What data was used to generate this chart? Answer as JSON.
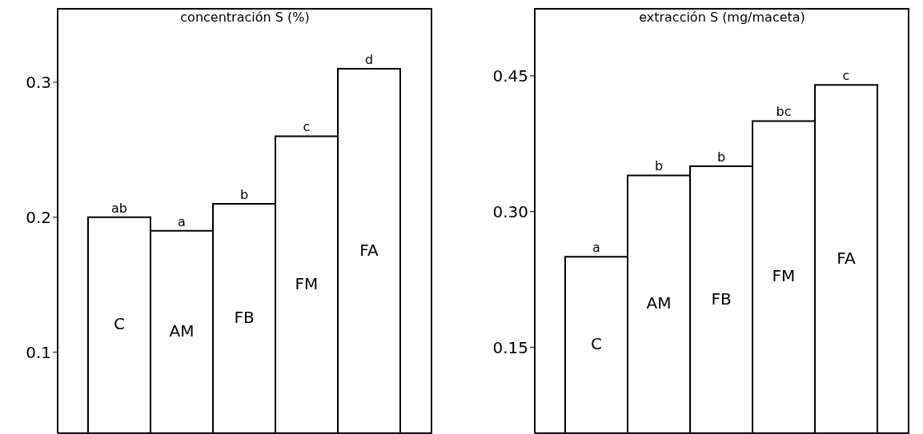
{
  "chart_data": [
    {
      "type": "bar",
      "title": "concentración S (%)",
      "categories": [
        "C",
        "AM",
        "FB",
        "FM",
        "FA"
      ],
      "values": [
        0.2,
        0.19,
        0.21,
        0.26,
        0.31
      ],
      "color": "#ffffff",
      "ylim": [
        0.04,
        0.355
      ],
      "yticks": [
        0.1,
        0.2,
        0.3
      ],
      "annotations": [
        {
          "text": "ab",
          "x": "C",
          "y": 0.2
        },
        {
          "text": "a",
          "x": "AM",
          "y": 0.19
        },
        {
          "text": "b",
          "x": "FB",
          "y": 0.21
        },
        {
          "text": "c",
          "x": "FM",
          "y": 0.26
        },
        {
          "text": "d",
          "x": "FA",
          "y": 0.31
        }
      ]
    },
    {
      "type": "bar",
      "title": "extracción S (mg/maceta)",
      "categories": [
        "C",
        "AM",
        "FB",
        "FM",
        "FA"
      ],
      "values": [
        0.25,
        0.34,
        0.35,
        0.4,
        0.44
      ],
      "color": "#ffffff",
      "ylim": [
        0.055,
        0.525
      ],
      "yticks": [
        {
          "value": 0.15,
          "label": "0.15"
        },
        {
          "value": 0.3,
          "label": "0.30"
        },
        {
          "value": 0.45,
          "label": "0.45"
        }
      ],
      "annotations": [
        {
          "text": "a",
          "x": "C",
          "y": 0.25
        },
        {
          "text": "b",
          "x": "AM",
          "y": 0.34
        },
        {
          "text": "b",
          "x": "FB",
          "y": 0.35
        },
        {
          "text": "bc",
          "x": "FM",
          "y": 0.4
        },
        {
          "text": "c",
          "x": "FA",
          "y": 0.44
        }
      ]
    }
  ]
}
